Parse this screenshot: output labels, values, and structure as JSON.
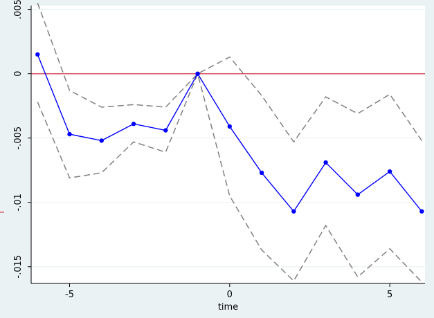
{
  "chart_data": {
    "type": "line",
    "title": "",
    "xlabel": "time",
    "ylabel": "",
    "xlim": [
      -6.2,
      6.1
    ],
    "ylim": [
      -0.0163,
      0.0053
    ],
    "xticks": [
      -5,
      0,
      5
    ],
    "xtick_labels": [
      "-5",
      "0",
      "5"
    ],
    "yticks": [
      0.005,
      0,
      -0.005,
      -0.01,
      -0.015
    ],
    "ytick_labels": [
      ".005",
      "0",
      "-.005",
      "-.01",
      "-.015"
    ],
    "reference_line_y": 0,
    "grid": "horizontal",
    "legend": "none",
    "x": [
      -6,
      -5,
      -4,
      -3,
      -2,
      -1,
      0,
      1,
      2,
      3,
      4,
      5,
      6
    ],
    "series": [
      {
        "role": "estimate",
        "values": [
          0.0015,
          -0.0047,
          -0.0052,
          -0.0039,
          -0.0044,
          0.0,
          -0.0041,
          -0.0077,
          -0.0107,
          -0.0069,
          -0.0094,
          -0.0076,
          -0.0107
        ]
      },
      {
        "role": "upper-ci",
        "values": [
          0.0055,
          -0.0013,
          -0.0026,
          -0.0024,
          -0.0026,
          0.0,
          0.0013,
          -0.0017,
          -0.0053,
          -0.0018,
          -0.0031,
          -0.0016,
          -0.0052
        ]
      },
      {
        "role": "lower-ci",
        "values": [
          -0.0022,
          -0.0081,
          -0.0077,
          -0.0053,
          -0.0061,
          0.0,
          -0.0095,
          -0.0137,
          -0.0161,
          -0.0118,
          -0.0158,
          -0.0136,
          -0.0162
        ]
      }
    ],
    "colors": {
      "estimate": "#0000ff",
      "ci": "#808080",
      "reference": "#d0414f",
      "plot_bg": "#ffffff",
      "outer_bg": "#eaf2f3",
      "grid": "#eaf2f3"
    }
  }
}
